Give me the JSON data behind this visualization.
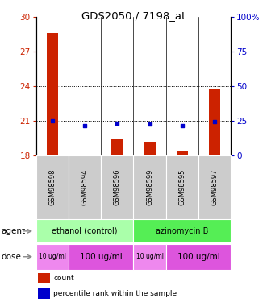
{
  "title": "GDS2050 / 7198_at",
  "samples": [
    "GSM98598",
    "GSM98594",
    "GSM98596",
    "GSM98599",
    "GSM98595",
    "GSM98597"
  ],
  "bar_values": [
    28.6,
    18.1,
    19.5,
    19.2,
    18.4,
    23.8
  ],
  "bar_base": 18.0,
  "blue_values": [
    21.0,
    20.6,
    20.8,
    20.7,
    20.6,
    20.9
  ],
  "ylim_left": [
    18,
    30
  ],
  "ylim_right": [
    0,
    100
  ],
  "yticks_left": [
    18,
    21,
    24,
    27,
    30
  ],
  "yticks_right": [
    0,
    25,
    50,
    75,
    100
  ],
  "hlines": [
    21,
    24,
    27
  ],
  "bar_color": "#CC2200",
  "blue_color": "#0000CC",
  "agent_groups": [
    {
      "label": "ethanol (control)",
      "start": 0,
      "end": 3,
      "color": "#AAFFAA"
    },
    {
      "label": "azinomycin B",
      "start": 3,
      "end": 6,
      "color": "#55EE55"
    }
  ],
  "dose_groups": [
    {
      "label": "10 ug/ml",
      "start": 0,
      "end": 1,
      "color": "#EE88EE",
      "fontsize": 5.5
    },
    {
      "label": "100 ug/ml",
      "start": 1,
      "end": 3,
      "color": "#DD55DD",
      "fontsize": 7.5
    },
    {
      "label": "10 ug/ml",
      "start": 3,
      "end": 4,
      "color": "#EE88EE",
      "fontsize": 5.5
    },
    {
      "label": "100 ug/ml",
      "start": 4,
      "end": 6,
      "color": "#DD55DD",
      "fontsize": 7.5
    }
  ],
  "sample_bg_color": "#CCCCCC",
  "left_tick_color": "#CC2200",
  "right_tick_color": "#0000CC",
  "legend_items": [
    {
      "color": "#CC2200",
      "label": "count"
    },
    {
      "color": "#0000CC",
      "label": "percentile rank within the sample"
    }
  ],
  "fig_width": 3.31,
  "fig_height": 3.75,
  "dpi": 100
}
